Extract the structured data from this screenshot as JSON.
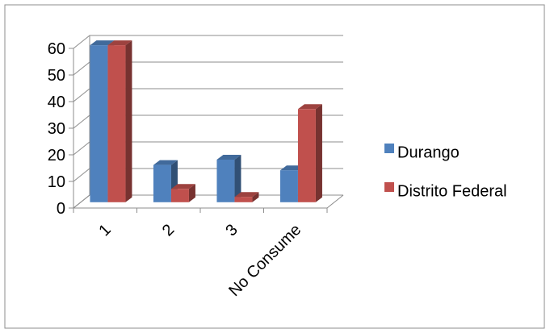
{
  "chart_data": {
    "type": "bar",
    "style": "3d-clustered-column",
    "categories": [
      "1",
      "2",
      "3",
      "No Consume"
    ],
    "series": [
      {
        "name": "Durango",
        "values": [
          59,
          14,
          16,
          12
        ],
        "color": "#4f81bd"
      },
      {
        "name": "Distrito Federal",
        "values": [
          59,
          5,
          2,
          35
        ],
        "color": "#c0504d"
      }
    ],
    "yticks": [
      "0",
      "10",
      "20",
      "30",
      "40",
      "50",
      "60"
    ],
    "ylim": [
      0,
      60
    ],
    "grid": true,
    "legend": "right",
    "title": "",
    "xlabel": "",
    "ylabel": ""
  }
}
